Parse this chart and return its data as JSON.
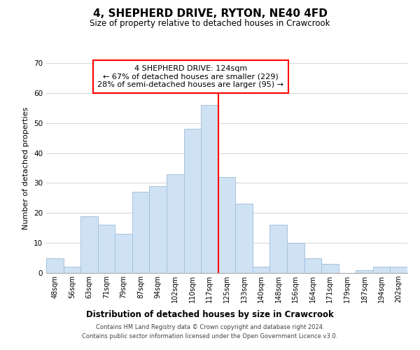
{
  "title": "4, SHEPHERD DRIVE, RYTON, NE40 4FD",
  "subtitle": "Size of property relative to detached houses in Crawcrook",
  "xlabel": "Distribution of detached houses by size in Crawcrook",
  "ylabel": "Number of detached properties",
  "bar_labels": [
    "48sqm",
    "56sqm",
    "63sqm",
    "71sqm",
    "79sqm",
    "87sqm",
    "94sqm",
    "102sqm",
    "110sqm",
    "117sqm",
    "125sqm",
    "133sqm",
    "140sqm",
    "148sqm",
    "156sqm",
    "164sqm",
    "171sqm",
    "179sqm",
    "187sqm",
    "194sqm",
    "202sqm"
  ],
  "bar_values": [
    5,
    2,
    19,
    16,
    13,
    27,
    29,
    33,
    48,
    56,
    32,
    23,
    2,
    16,
    10,
    5,
    3,
    0,
    1,
    2,
    2
  ],
  "bar_color": "#cfe2f3",
  "bar_edge_color": "#a4c2e0",
  "vline_x": 9.5,
  "vline_color": "red",
  "ylim": [
    0,
    70
  ],
  "yticks": [
    0,
    10,
    20,
    30,
    40,
    50,
    60,
    70
  ],
  "annotation_title": "4 SHEPHERD DRIVE: 124sqm",
  "annotation_line1": "← 67% of detached houses are smaller (229)",
  "annotation_line2": "28% of semi-detached houses are larger (95) →",
  "annotation_box_color": "#ffffff",
  "annotation_box_edge": "red",
  "footer_line1": "Contains HM Land Registry data © Crown copyright and database right 2024.",
  "footer_line2": "Contains public sector information licensed under the Open Government Licence v3.0.",
  "background_color": "#ffffff",
  "grid_color": "#d8d8d8"
}
